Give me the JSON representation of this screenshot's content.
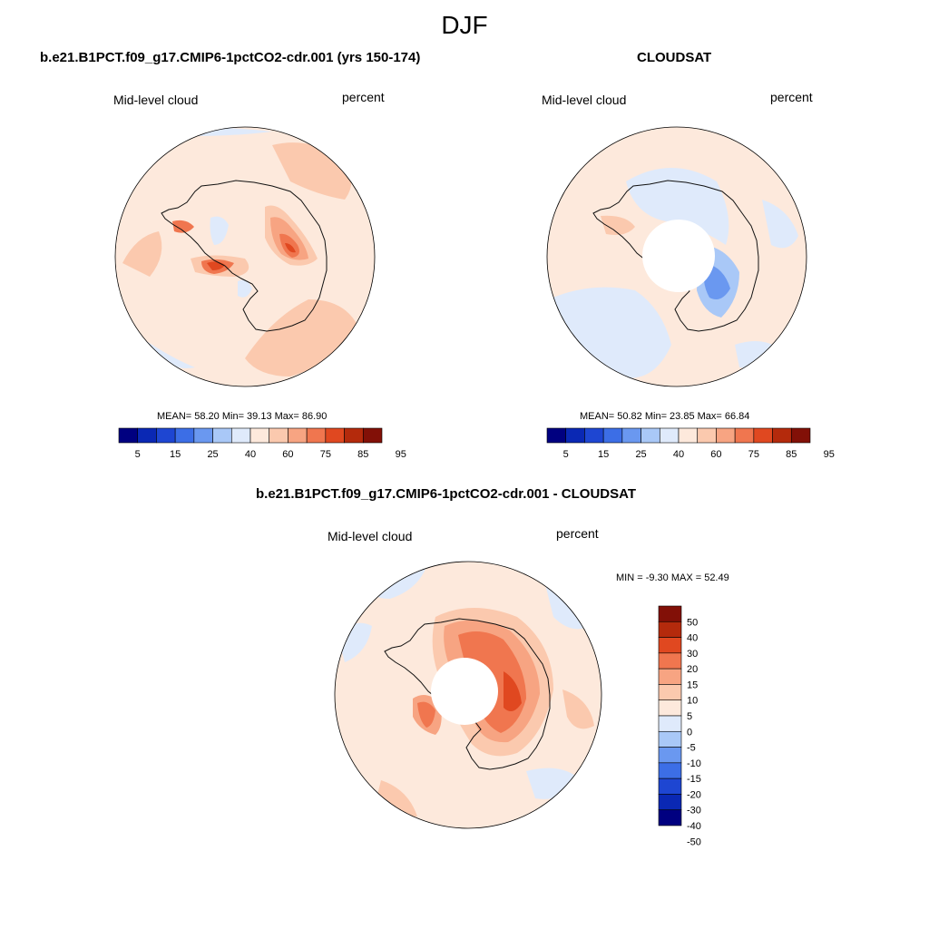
{
  "season": "DJF",
  "palette": [
    "#000080",
    "#0a28b4",
    "#1e46d2",
    "#3c6ee6",
    "#6a98f0",
    "#a9c8f7",
    "#dfeafb",
    "#fde9dc",
    "#fbc9ae",
    "#f7a482",
    "#f0764f",
    "#e04820",
    "#b42a0c",
    "#821007"
  ],
  "chart_data": [
    {
      "type": "heatmap",
      "projection": "south-polar-stereographic",
      "title": "b.e21.B1PCT.f09_g17.CMIP6-1pctCO2-cdr.001 (yrs 150-174)",
      "left_label": "Mid-level cloud",
      "right_label": "percent",
      "stats": "MEAN=  58.20  Min=  39.13  Max=  86.90",
      "mean": 58.2,
      "min": 39.13,
      "max": 86.9,
      "colorbar_levels": [
        5,
        10,
        15,
        20,
        25,
        30,
        40,
        50,
        60,
        70,
        75,
        80,
        85,
        90,
        95
      ],
      "colorbar_tick_labels": [
        "5",
        "15",
        "25",
        "40",
        "60",
        "75",
        "85",
        "95"
      ]
    },
    {
      "type": "heatmap",
      "projection": "south-polar-stereographic",
      "title": "CLOUDSAT",
      "left_label": "Mid-level cloud",
      "right_label": "percent",
      "stats": "MEAN=  50.82  Min=  23.85  Max=  66.84",
      "mean": 50.82,
      "min": 23.85,
      "max": 66.84,
      "colorbar_levels": [
        5,
        10,
        15,
        20,
        25,
        30,
        40,
        50,
        60,
        70,
        75,
        80,
        85,
        90,
        95
      ],
      "colorbar_tick_labels": [
        "5",
        "15",
        "25",
        "40",
        "60",
        "75",
        "85",
        "95"
      ],
      "missing_data_region": "pole"
    },
    {
      "type": "heatmap",
      "projection": "south-polar-stereographic",
      "title": "b.e21.B1PCT.f09_g17.CMIP6-1pctCO2-cdr.001 - CLOUDSAT",
      "left_label": "Mid-level cloud",
      "right_label": "percent",
      "stats": "MIN =  -9.30 MAX =  52.49",
      "min": -9.3,
      "max": 52.49,
      "colorbar_levels": [
        50,
        40,
        30,
        20,
        15,
        10,
        5,
        0,
        -5,
        -10,
        -15,
        -20,
        -30,
        -40,
        -50
      ],
      "colorbar_tick_labels": [
        "50",
        "40",
        "30",
        "20",
        "15",
        "10",
        "5",
        "0",
        "-5",
        "-10",
        "-15",
        "-20",
        "-30",
        "-40",
        "-50"
      ],
      "missing_data_region": "pole"
    }
  ]
}
